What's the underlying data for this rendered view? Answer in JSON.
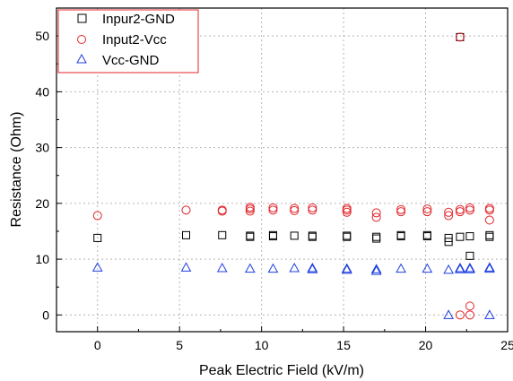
{
  "chart_data": {
    "type": "scatter",
    "xlabel": "Peak Electric Field (kV/m)",
    "ylabel": "Resistance (Ohm)",
    "xlim": [
      -2.5,
      25
    ],
    "ylim": [
      -3,
      55
    ],
    "xticks": [
      0,
      5,
      10,
      15,
      20,
      25
    ],
    "yticks": [
      0,
      10,
      20,
      30,
      40,
      50
    ],
    "xtick_labels": [
      "0",
      "5",
      "10",
      "15",
      "20",
      "25"
    ],
    "ytick_labels": [
      "0",
      "10",
      "20",
      "30",
      "40",
      "50"
    ],
    "grid": "dotted",
    "legend_position": "top-left",
    "series": [
      {
        "name": "Inpur2-GND",
        "marker": "square",
        "color": "#000000",
        "points": [
          [
            0,
            13.8
          ],
          [
            5.4,
            14.3
          ],
          [
            7.6,
            14.3
          ],
          [
            9.3,
            14.0
          ],
          [
            9.3,
            14.2
          ],
          [
            10.7,
            14.1
          ],
          [
            10.7,
            14.3
          ],
          [
            12.0,
            14.2
          ],
          [
            13.1,
            14.0
          ],
          [
            13.1,
            14.2
          ],
          [
            15.2,
            14.0
          ],
          [
            15.2,
            14.2
          ],
          [
            17.0,
            13.7
          ],
          [
            17.0,
            14.0
          ],
          [
            18.5,
            14.1
          ],
          [
            18.5,
            14.3
          ],
          [
            20.1,
            14.1
          ],
          [
            20.1,
            14.3
          ],
          [
            21.4,
            13.1
          ],
          [
            21.4,
            13.8
          ],
          [
            22.1,
            14.0
          ],
          [
            22.1,
            49.8
          ],
          [
            22.7,
            10.6
          ],
          [
            22.7,
            14.1
          ],
          [
            23.9,
            14.3
          ],
          [
            23.9,
            14.0
          ]
        ]
      },
      {
        "name": "Input2-Vcc",
        "marker": "circle",
        "color": "#e3242b",
        "points": [
          [
            0,
            17.8
          ],
          [
            5.4,
            18.8
          ],
          [
            7.6,
            18.6
          ],
          [
            7.6,
            18.8
          ],
          [
            9.3,
            18.6
          ],
          [
            9.3,
            19.0
          ],
          [
            9.3,
            19.3
          ],
          [
            10.7,
            18.8
          ],
          [
            10.7,
            19.2
          ],
          [
            12.0,
            18.7
          ],
          [
            12.0,
            19.1
          ],
          [
            13.1,
            18.8
          ],
          [
            13.1,
            19.2
          ],
          [
            15.2,
            18.4
          ],
          [
            15.2,
            18.8
          ],
          [
            15.2,
            19.1
          ],
          [
            17.0,
            17.5
          ],
          [
            17.0,
            18.3
          ],
          [
            18.5,
            18.5
          ],
          [
            18.5,
            18.9
          ],
          [
            20.1,
            18.5
          ],
          [
            20.1,
            19.0
          ],
          [
            21.4,
            17.8
          ],
          [
            21.4,
            18.4
          ],
          [
            22.1,
            18.5
          ],
          [
            22.1,
            18.9
          ],
          [
            22.1,
            0.0
          ],
          [
            22.1,
            49.8
          ],
          [
            22.7,
            18.8
          ],
          [
            22.7,
            19.2
          ],
          [
            22.7,
            1.6
          ],
          [
            22.7,
            0.0
          ],
          [
            23.9,
            18.8
          ],
          [
            23.9,
            19.1
          ],
          [
            23.9,
            17.0
          ]
        ]
      },
      {
        "name": "Vcc-GND",
        "marker": "triangle",
        "color": "#1f3fe0",
        "points": [
          [
            0,
            8.5
          ],
          [
            5.4,
            8.5
          ],
          [
            7.6,
            8.4
          ],
          [
            9.3,
            8.3
          ],
          [
            10.7,
            8.3
          ],
          [
            12.0,
            8.4
          ],
          [
            13.1,
            8.2
          ],
          [
            13.1,
            8.4
          ],
          [
            15.2,
            8.1
          ],
          [
            15.2,
            8.3
          ],
          [
            17.0,
            7.9
          ],
          [
            17.0,
            8.2
          ],
          [
            18.5,
            8.3
          ],
          [
            20.1,
            8.3
          ],
          [
            21.4,
            8.1
          ],
          [
            21.4,
            0.0
          ],
          [
            22.1,
            8.2
          ],
          [
            22.1,
            8.4
          ],
          [
            22.7,
            8.2
          ],
          [
            22.7,
            8.4
          ],
          [
            23.9,
            8.3
          ],
          [
            23.9,
            8.5
          ],
          [
            23.9,
            0.0
          ]
        ]
      }
    ]
  }
}
